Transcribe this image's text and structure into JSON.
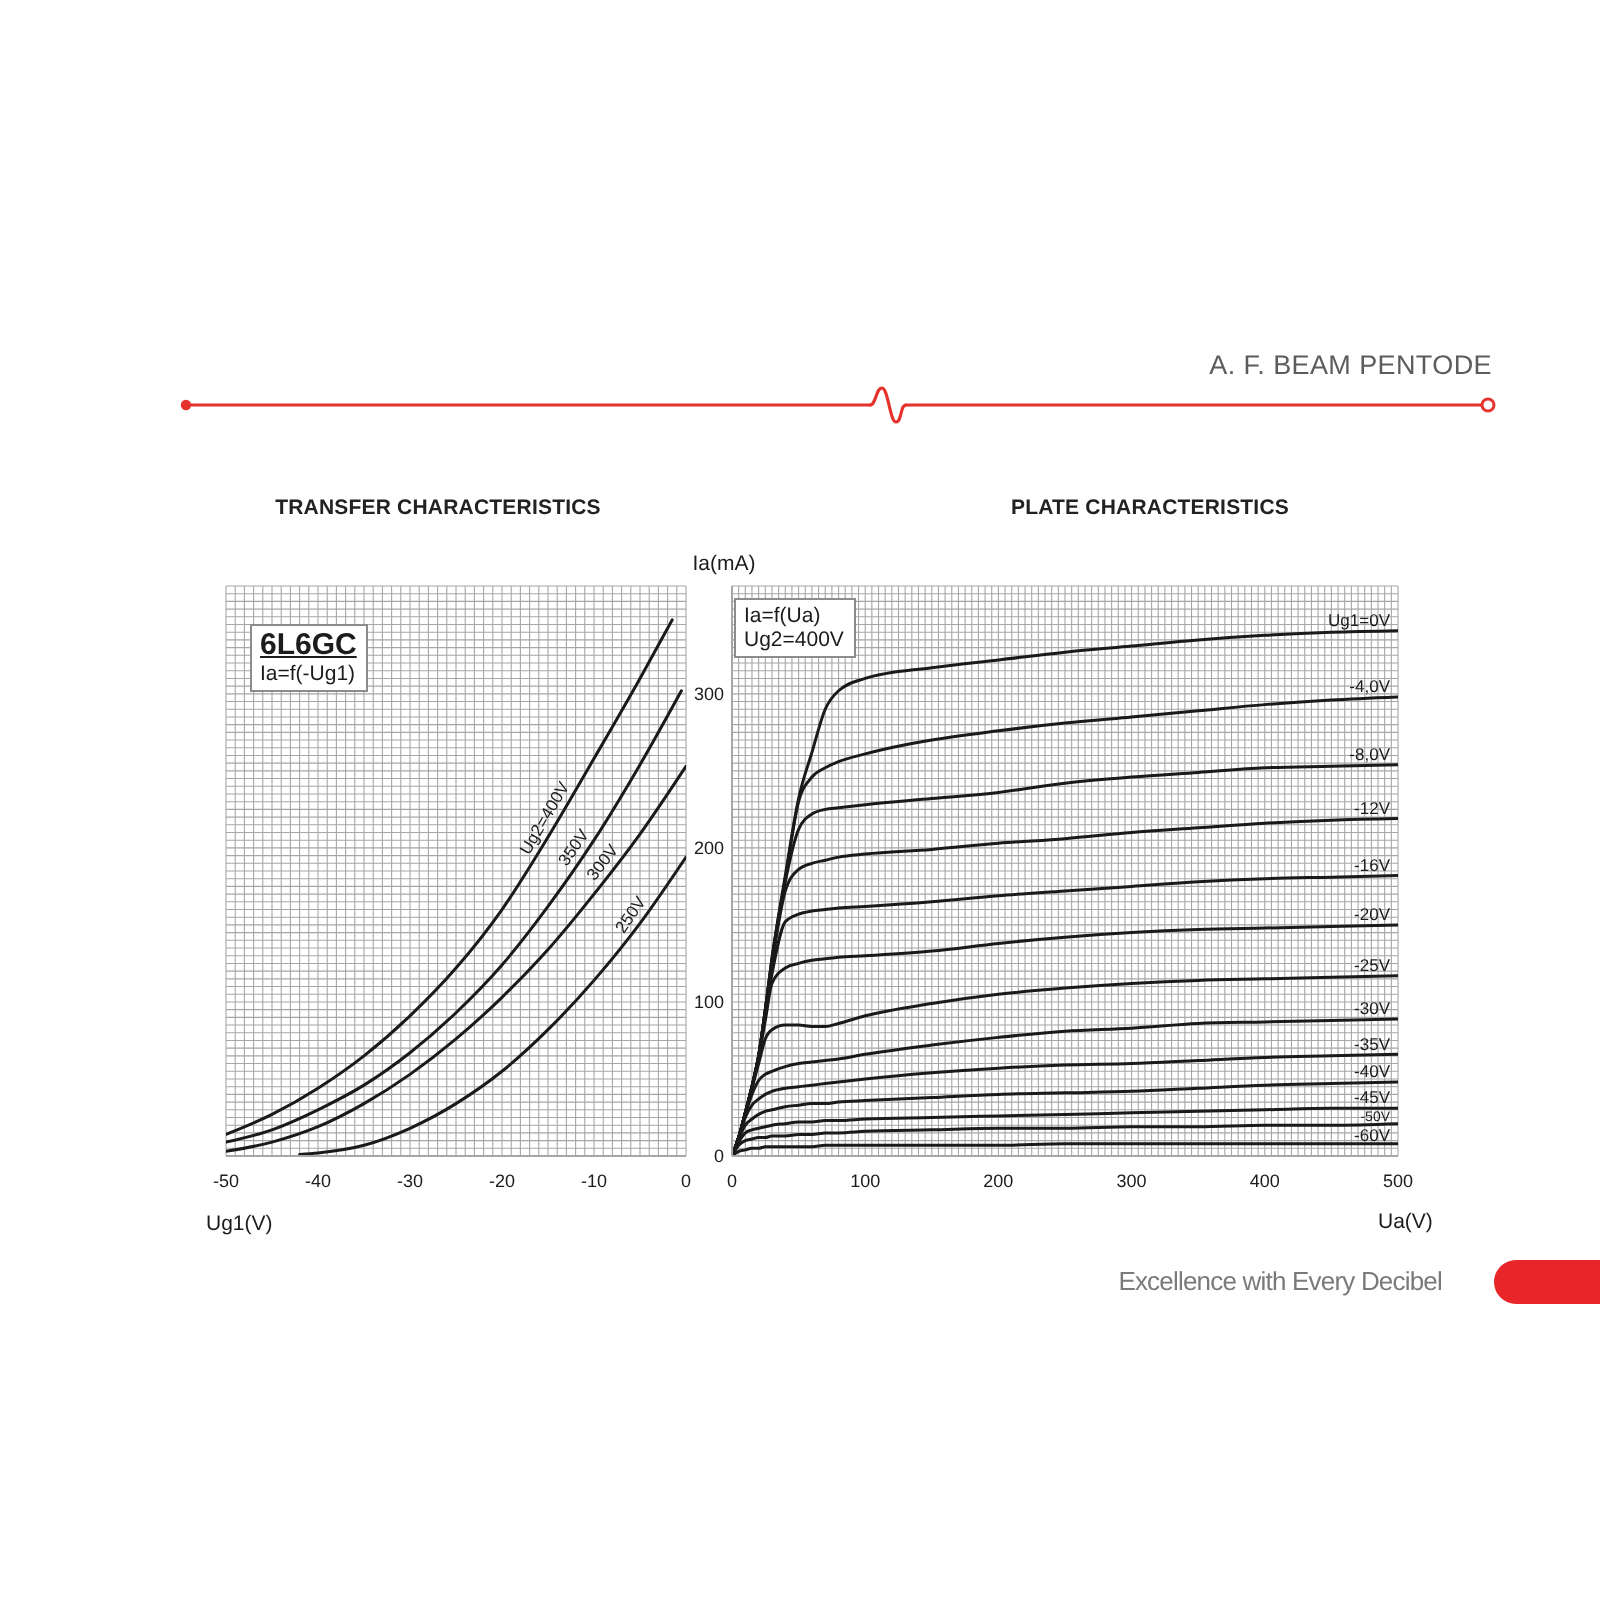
{
  "chart_data": [
    {
      "type": "line",
      "title": "TRANSFER CHARACTERISTICS",
      "xlabel": "Ug1(V)",
      "annotations": [
        "6L6GC",
        "Ia=f(-Ug1)"
      ],
      "xlim": [
        -50,
        0
      ],
      "ylim": [
        0,
        370
      ],
      "xticks": [
        -50,
        {
          "value": -49,
          "label": null
        },
        {
          "value": -48,
          "label": null
        },
        {
          "value": -47,
          "label": null
        },
        {
          "value": -46,
          "label": null
        },
        {
          "value": -45,
          "label": null
        },
        {
          "value": -44,
          "label": null
        },
        {
          "value": -43,
          "label": null
        },
        {
          "value": -42,
          "label": null
        },
        {
          "value": -41,
          "label": null
        },
        -40,
        {
          "value": -39,
          "label": null
        },
        {
          "value": -38,
          "label": null
        },
        {
          "value": -37,
          "label": null
        },
        {
          "value": -36,
          "label": null
        },
        {
          "value": -35,
          "label": null
        },
        {
          "value": -34,
          "label": null
        },
        {
          "value": -33,
          "label": null
        },
        {
          "value": -32,
          "label": null
        },
        {
          "value": -31,
          "label": null
        },
        -30,
        {
          "value": -29,
          "label": null
        },
        {
          "value": -28,
          "label": null
        },
        {
          "value": -27,
          "label": null
        },
        {
          "value": -26,
          "label": null
        },
        {
          "value": -25,
          "label": null
        },
        {
          "value": -24,
          "label": null
        },
        {
          "value": -23,
          "label": null
        },
        {
          "value": -22,
          "label": null
        },
        {
          "value": -21,
          "label": null
        },
        -20,
        {
          "value": -19,
          "label": null
        },
        {
          "value": -18,
          "label": null
        },
        {
          "value": -17,
          "label": null
        },
        {
          "value": -16,
          "label": null
        },
        {
          "value": -15,
          "label": null
        },
        {
          "value": -14,
          "label": null
        },
        {
          "value": -13,
          "label": null
        },
        {
          "value": -12,
          "label": null
        },
        {
          "value": -11,
          "label": null
        },
        -10,
        {
          "value": -9,
          "label": null
        },
        {
          "value": -8,
          "label": null
        },
        {
          "value": -7,
          "label": null
        },
        {
          "value": -6,
          "label": null
        },
        {
          "value": -5,
          "label": null
        },
        {
          "value": -4,
          "label": null
        },
        {
          "value": -3,
          "label": null
        },
        {
          "value": -2,
          "label": null
        },
        {
          "value": -1,
          "label": null
        },
        0
      ],
      "yticks": [
        0,
        {
          "value": 5,
          "label": null
        },
        {
          "value": 10,
          "label": null
        },
        {
          "value": 15,
          "label": null
        },
        {
          "value": 20,
          "label": null
        },
        {
          "value": 25,
          "label": null
        },
        {
          "value": 30,
          "label": null
        },
        {
          "value": 35,
          "label": null
        },
        {
          "value": 40,
          "label": null
        },
        {
          "value": 45,
          "label": null
        },
        {
          "value": 50,
          "label": null
        },
        {
          "value": 55,
          "label": null
        },
        {
          "value": 60,
          "label": null
        },
        {
          "value": 65,
          "label": null
        },
        {
          "value": 70,
          "label": null
        },
        {
          "value": 75,
          "label": null
        },
        {
          "value": 80,
          "label": null
        },
        {
          "value": 85,
          "label": null
        },
        {
          "value": 90,
          "label": null
        },
        {
          "value": 95,
          "label": null
        },
        100,
        {
          "value": 105,
          "label": null
        },
        {
          "value": 110,
          "label": null
        },
        {
          "value": 115,
          "label": null
        },
        {
          "value": 120,
          "label": null
        },
        {
          "value": 125,
          "label": null
        },
        {
          "value": 130,
          "label": null
        },
        {
          "value": 135,
          "label": null
        },
        {
          "value": 140,
          "label": null
        },
        {
          "value": 145,
          "label": null
        },
        {
          "value": 150,
          "label": null
        },
        {
          "value": 155,
          "label": null
        },
        {
          "value": 160,
          "label": null
        },
        {
          "value": 165,
          "label": null
        },
        {
          "value": 170,
          "label": null
        },
        {
          "value": 175,
          "label": null
        },
        {
          "value": 180,
          "label": null
        },
        {
          "value": 185,
          "label": null
        },
        {
          "value": 190,
          "label": null
        },
        {
          "value": 195,
          "label": null
        },
        200,
        {
          "value": 205,
          "label": null
        },
        {
          "value": 210,
          "label": null
        },
        {
          "value": 215,
          "label": null
        },
        {
          "value": 220,
          "label": null
        },
        {
          "value": 225,
          "label": null
        },
        {
          "value": 230,
          "label": null
        },
        {
          "value": 235,
          "label": null
        },
        {
          "value": 240,
          "label": null
        },
        {
          "value": 245,
          "label": null
        },
        {
          "value": 250,
          "label": null
        },
        {
          "value": 255,
          "label": null
        },
        {
          "value": 260,
          "label": null
        },
        {
          "value": 265,
          "label": null
        },
        {
          "value": 270,
          "label": null
        },
        {
          "value": 275,
          "label": null
        },
        {
          "value": 280,
          "label": null
        },
        {
          "value": 285,
          "label": null
        },
        {
          "value": 290,
          "label": null
        },
        {
          "value": 295,
          "label": null
        },
        300,
        {
          "value": 305,
          "label": null
        },
        {
          "value": 310,
          "label": null
        },
        {
          "value": 315,
          "label": null
        },
        {
          "value": 320,
          "label": null
        },
        {
          "value": 325,
          "label": null
        },
        {
          "value": 330,
          "label": null
        },
        {
          "value": 335,
          "label": null
        },
        {
          "value": 340,
          "label": null
        },
        {
          "value": 345,
          "label": null
        },
        {
          "value": 350,
          "label": null
        },
        {
          "value": 355,
          "label": null
        },
        {
          "value": 360,
          "label": null
        },
        {
          "value": 365,
          "label": null
        },
        {
          "value": 370,
          "label": null
        }
      ],
      "tick_labels": "x",
      "grid": true,
      "marker": "none",
      "series": [
        {
          "name": "Ug2=400V",
          "color": "#1a1a1a",
          "x": [
            -50,
            -45,
            -40,
            -35,
            -30,
            -25,
            -20,
            -15,
            -10,
            -5,
            -1.5
          ],
          "values": [
            14,
            27,
            44,
            65,
            91,
            122,
            160,
            207,
            258,
            310,
            348
          ]
        },
        {
          "name": "350V",
          "color": "#1a1a1a",
          "x": [
            -50,
            -45,
            -40,
            -35,
            -30,
            -25,
            -20,
            -15,
            -10,
            -5,
            -0.5
          ],
          "values": [
            9,
            17,
            30,
            46,
            67,
            93,
            124,
            162,
            205,
            254,
            302
          ]
        },
        {
          "name": "300V",
          "color": "#1a1a1a",
          "x": [
            -50,
            -45,
            -40,
            -35,
            -30,
            -25,
            -20,
            -15,
            -10,
            -5,
            0
          ],
          "values": [
            3,
            9,
            19,
            34,
            53,
            76,
            103,
            134,
            170,
            209,
            253
          ]
        },
        {
          "name": "250V",
          "color": "#1a1a1a",
          "x": [
            -42,
            -40,
            -35,
            -30,
            -25,
            -20,
            -15,
            -10,
            -5,
            0
          ],
          "values": [
            1,
            2,
            7,
            18,
            34,
            55,
            82,
            114,
            151,
            194
          ]
        }
      ]
    },
    {
      "type": "line",
      "title": "PLATE CHARACTERISTICS",
      "xlabel": "Ua(V)",
      "ylabel": "Ia(mA)",
      "annotations": [
        "A. F. BEAM PENTODE",
        "Ia=f(Ua)",
        "Ug2=400V",
        "Excellence with Every Decibel"
      ],
      "x": [
        0,
        5,
        10,
        15,
        20,
        25,
        30,
        40,
        50,
        60,
        70,
        80,
        100,
        150,
        200,
        250,
        300,
        350,
        400,
        450,
        500
      ],
      "xlim": [
        0,
        500
      ],
      "ylim": [
        0,
        370
      ],
      "xticks": [
        0,
        {
          "value": 5,
          "label": null
        },
        {
          "value": 10,
          "label": null
        },
        {
          "value": 15,
          "label": null
        },
        {
          "value": 20,
          "label": null
        },
        {
          "value": 25,
          "label": null
        },
        {
          "value": 30,
          "label": null
        },
        {
          "value": 35,
          "label": null
        },
        {
          "value": 40,
          "label": null
        },
        {
          "value": 45,
          "label": null
        },
        {
          "value": 50,
          "label": null
        },
        {
          "value": 55,
          "label": null
        },
        {
          "value": 60,
          "label": null
        },
        {
          "value": 65,
          "label": null
        },
        {
          "value": 70,
          "label": null
        },
        {
          "value": 75,
          "label": null
        },
        {
          "value": 80,
          "label": null
        },
        {
          "value": 85,
          "label": null
        },
        {
          "value": 90,
          "label": null
        },
        {
          "value": 95,
          "label": null
        },
        100,
        {
          "value": 105,
          "label": null
        },
        {
          "value": 110,
          "label": null
        },
        {
          "value": 115,
          "label": null
        },
        {
          "value": 120,
          "label": null
        },
        {
          "value": 125,
          "label": null
        },
        {
          "value": 130,
          "label": null
        },
        {
          "value": 135,
          "label": null
        },
        {
          "value": 140,
          "label": null
        },
        {
          "value": 145,
          "label": null
        },
        {
          "value": 150,
          "label": null
        },
        {
          "value": 155,
          "label": null
        },
        {
          "value": 160,
          "label": null
        },
        {
          "value": 165,
          "label": null
        },
        {
          "value": 170,
          "label": null
        },
        {
          "value": 175,
          "label": null
        },
        {
          "value": 180,
          "label": null
        },
        {
          "value": 185,
          "label": null
        },
        {
          "value": 190,
          "label": null
        },
        {
          "value": 195,
          "label": null
        },
        200,
        {
          "value": 205,
          "label": null
        },
        {
          "value": 210,
          "label": null
        },
        {
          "value": 215,
          "label": null
        },
        {
          "value": 220,
          "label": null
        },
        {
          "value": 225,
          "label": null
        },
        {
          "value": 230,
          "label": null
        },
        {
          "value": 235,
          "label": null
        },
        {
          "value": 240,
          "label": null
        },
        {
          "value": 245,
          "label": null
        },
        {
          "value": 250,
          "label": null
        },
        {
          "value": 255,
          "label": null
        },
        {
          "value": 260,
          "label": null
        },
        {
          "value": 265,
          "label": null
        },
        {
          "value": 270,
          "label": null
        },
        {
          "value": 275,
          "label": null
        },
        {
          "value": 280,
          "label": null
        },
        {
          "value": 285,
          "label": null
        },
        {
          "value": 290,
          "label": null
        },
        {
          "value": 295,
          "label": null
        },
        300,
        {
          "value": 305,
          "label": null
        },
        {
          "value": 310,
          "label": null
        },
        {
          "value": 315,
          "label": null
        },
        {
          "value": 320,
          "label": null
        },
        {
          "value": 325,
          "label": null
        },
        {
          "value": 330,
          "label": null
        },
        {
          "value": 335,
          "label": null
        },
        {
          "value": 340,
          "label": null
        },
        {
          "value": 345,
          "label": null
        },
        {
          "value": 350,
          "label": null
        },
        {
          "value": 355,
          "label": null
        },
        {
          "value": 360,
          "label": null
        },
        {
          "value": 365,
          "label": null
        },
        {
          "value": 370,
          "label": null
        },
        {
          "value": 375,
          "label": null
        },
        {
          "value": 380,
          "label": null
        },
        {
          "value": 385,
          "label": null
        },
        {
          "value": 390,
          "label": null
        },
        {
          "value": 395,
          "label": null
        },
        400,
        {
          "value": 405,
          "label": null
        },
        {
          "value": 410,
          "label": null
        },
        {
          "value": 415,
          "label": null
        },
        {
          "value": 420,
          "label": null
        },
        {
          "value": 425,
          "label": null
        },
        {
          "value": 430,
          "label": null
        },
        {
          "value": 435,
          "label": null
        },
        {
          "value": 440,
          "label": null
        },
        {
          "value": 445,
          "label": null
        },
        {
          "value": 450,
          "label": null
        },
        {
          "value": 455,
          "label": null
        },
        {
          "value": 460,
          "label": null
        },
        {
          "value": 465,
          "label": null
        },
        {
          "value": 470,
          "label": null
        },
        {
          "value": 475,
          "label": null
        },
        {
          "value": 480,
          "label": null
        },
        {
          "value": 485,
          "label": null
        },
        {
          "value": 490,
          "label": null
        },
        {
          "value": 495,
          "label": null
        },
        500
      ],
      "yticks": [
        0,
        {
          "value": 5,
          "label": null
        },
        {
          "value": 10,
          "label": null
        },
        {
          "value": 15,
          "label": null
        },
        {
          "value": 20,
          "label": null
        },
        {
          "value": 25,
          "label": null
        },
        {
          "value": 30,
          "label": null
        },
        {
          "value": 35,
          "label": null
        },
        {
          "value": 40,
          "label": null
        },
        {
          "value": 45,
          "label": null
        },
        {
          "value": 50,
          "label": null
        },
        {
          "value": 55,
          "label": null
        },
        {
          "value": 60,
          "label": null
        },
        {
          "value": 65,
          "label": null
        },
        {
          "value": 70,
          "label": null
        },
        {
          "value": 75,
          "label": null
        },
        {
          "value": 80,
          "label": null
        },
        {
          "value": 85,
          "label": null
        },
        {
          "value": 90,
          "label": null
        },
        {
          "value": 95,
          "label": null
        },
        100,
        {
          "value": 105,
          "label": null
        },
        {
          "value": 110,
          "label": null
        },
        {
          "value": 115,
          "label": null
        },
        {
          "value": 120,
          "label": null
        },
        {
          "value": 125,
          "label": null
        },
        {
          "value": 130,
          "label": null
        },
        {
          "value": 135,
          "label": null
        },
        {
          "value": 140,
          "label": null
        },
        {
          "value": 145,
          "label": null
        },
        {
          "value": 150,
          "label": null
        },
        {
          "value": 155,
          "label": null
        },
        {
          "value": 160,
          "label": null
        },
        {
          "value": 165,
          "label": null
        },
        {
          "value": 170,
          "label": null
        },
        {
          "value": 175,
          "label": null
        },
        {
          "value": 180,
          "label": null
        },
        {
          "value": 185,
          "label": null
        },
        {
          "value": 190,
          "label": null
        },
        {
          "value": 195,
          "label": null
        },
        200,
        {
          "value": 205,
          "label": null
        },
        {
          "value": 210,
          "label": null
        },
        {
          "value": 215,
          "label": null
        },
        {
          "value": 220,
          "label": null
        },
        {
          "value": 225,
          "label": null
        },
        {
          "value": 230,
          "label": null
        },
        {
          "value": 235,
          "label": null
        },
        {
          "value": 240,
          "label": null
        },
        {
          "value": 245,
          "label": null
        },
        {
          "value": 250,
          "label": null
        },
        {
          "value": 255,
          "label": null
        },
        {
          "value": 260,
          "label": null
        },
        {
          "value": 265,
          "label": null
        },
        {
          "value": 270,
          "label": null
        },
        {
          "value": 275,
          "label": null
        },
        {
          "value": 280,
          "label": null
        },
        {
          "value": 285,
          "label": null
        },
        {
          "value": 290,
          "label": null
        },
        {
          "value": 295,
          "label": null
        },
        300,
        {
          "value": 305,
          "label": null
        },
        {
          "value": 310,
          "label": null
        },
        {
          "value": 315,
          "label": null
        },
        {
          "value": 320,
          "label": null
        },
        {
          "value": 325,
          "label": null
        },
        {
          "value": 330,
          "label": null
        },
        {
          "value": 335,
          "label": null
        },
        {
          "value": 340,
          "label": null
        },
        {
          "value": 345,
          "label": null
        },
        {
          "value": 350,
          "label": null
        },
        {
          "value": 355,
          "label": null
        },
        {
          "value": 360,
          "label": null
        },
        {
          "value": 365,
          "label": null
        },
        {
          "value": 370,
          "label": null
        }
      ],
      "grid": true,
      "marker": "none",
      "series": [
        {
          "name": "Ug1=0V",
          "color": "#1a1a1a",
          "values": [
            0,
            12,
            28,
            45,
            65,
            95,
            128,
            182,
            232,
            262,
            290,
            302,
            310,
            317,
            322,
            327,
            331,
            335,
            338,
            340,
            341
          ]
        },
        {
          "name": "-4,0V",
          "color": "#1a1a1a",
          "values": [
            0,
            12,
            28,
            45,
            65,
            95,
            128,
            180,
            230,
            246,
            252,
            256,
            261,
            270,
            276,
            281,
            285,
            289,
            293,
            296,
            298
          ]
        },
        {
          "name": "-8,0V",
          "color": "#1a1a1a",
          "values": [
            0,
            12,
            28,
            45,
            65,
            95,
            127,
            178,
            212,
            222,
            225,
            226,
            228,
            232,
            236,
            242,
            246,
            249,
            252,
            253,
            254
          ]
        },
        {
          "name": "-12V",
          "color": "#1a1a1a",
          "values": [
            0,
            12,
            28,
            45,
            65,
            94,
            124,
            172,
            186,
            190,
            192,
            194,
            196,
            199,
            203,
            206,
            210,
            213,
            216,
            218,
            219
          ]
        },
        {
          "name": "-16V",
          "color": "#1a1a1a",
          "values": [
            0,
            12,
            28,
            45,
            65,
            92,
            118,
            152,
            157,
            159,
            160,
            161,
            162,
            165,
            169,
            172,
            175,
            178,
            180,
            181,
            182
          ]
        },
        {
          "name": "-20V",
          "color": "#1a1a1a",
          "values": [
            0,
            12,
            28,
            45,
            64,
            88,
            112,
            122,
            125,
            127,
            128,
            129,
            130,
            133,
            138,
            142,
            145,
            147,
            148,
            149,
            150
          ]
        },
        {
          "name": "-25V",
          "color": "#1a1a1a",
          "values": [
            0,
            12,
            28,
            44,
            60,
            76,
            82,
            85,
            85,
            84,
            84,
            86,
            91,
            99,
            105,
            109,
            112,
            114,
            115,
            116,
            117
          ]
        },
        {
          "name": "-30V",
          "color": "#1a1a1a",
          "values": [
            0,
            12,
            27,
            40,
            49,
            53,
            55,
            58,
            60,
            61,
            62,
            63,
            66,
            72,
            77,
            81,
            83,
            86,
            87,
            88,
            89
          ]
        },
        {
          "name": "-35V",
          "color": "#1a1a1a",
          "values": [
            0,
            12,
            25,
            33,
            37,
            40,
            42,
            44,
            45,
            46,
            47,
            48,
            50,
            54,
            57,
            59,
            60,
            62,
            64,
            65,
            66
          ]
        },
        {
          "name": "-40V",
          "color": "#1a1a1a",
          "values": [
            0,
            11,
            20,
            24,
            27,
            29,
            30,
            32,
            33,
            34,
            34,
            35,
            36,
            38,
            40,
            41,
            42,
            44,
            46,
            47,
            48
          ]
        },
        {
          "name": "-45V",
          "color": "#1a1a1a",
          "values": [
            0,
            9,
            15,
            17,
            18,
            19,
            20,
            21,
            22,
            22,
            23,
            23,
            24,
            25,
            26,
            27,
            28,
            29,
            30,
            31,
            31
          ]
        },
        {
          "name": "-50V",
          "color": "#1a1a1a",
          "values": [
            0,
            7,
            10,
            11,
            12,
            12,
            13,
            13,
            14,
            14,
            15,
            15,
            16,
            17,
            18,
            18,
            19,
            19,
            20,
            20,
            21
          ]
        },
        {
          "name": "-60V",
          "color": "#1a1a1a",
          "values": [
            0,
            3,
            4,
            5,
            5,
            6,
            6,
            6,
            6,
            6,
            7,
            7,
            7,
            7,
            7,
            8,
            8,
            8,
            8,
            8,
            8
          ]
        }
      ]
    }
  ]
}
